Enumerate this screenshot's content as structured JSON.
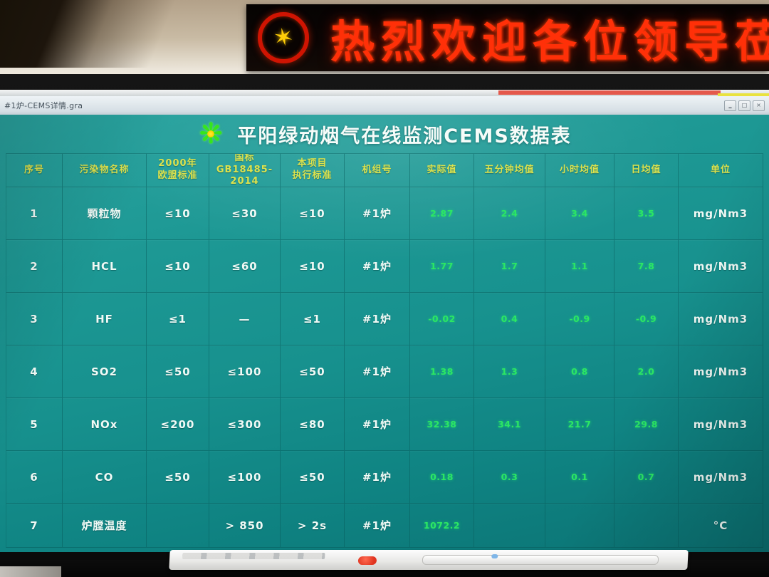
{
  "led_banner": {
    "text": "热烈欢迎各位领导莅",
    "emblem_icon": "red-ring-yellow-star",
    "text_color": "#ff3008",
    "background": "#0a0504"
  },
  "window": {
    "title": "#1炉-CEMS详情.gra",
    "controls": {
      "minimize": "‗",
      "maximize": "□",
      "close": "×"
    }
  },
  "app": {
    "logo_icon": "green-flower-logo",
    "title": "平阳绿动烟气在线监测CEMS数据表"
  },
  "table": {
    "headers": [
      "序号",
      "污染物名称",
      "2000年\n欧盟标准",
      "国标\nGB18485-2014",
      "本项目\n执行标准",
      "机组号",
      "实际值",
      "五分钟均值",
      "小时均值",
      "日均值",
      "单位"
    ],
    "green_columns": [
      6,
      7,
      8,
      9
    ],
    "rows": [
      [
        "1",
        "颗粒物",
        "≤10",
        "≤30",
        "≤10",
        "#1炉",
        "2.87",
        "2.4",
        "3.4",
        "3.5",
        "mg/Nm3"
      ],
      [
        "2",
        "HCL",
        "≤10",
        "≤60",
        "≤10",
        "#1炉",
        "1.77",
        "1.7",
        "1.1",
        "7.8",
        "mg/Nm3"
      ],
      [
        "3",
        "HF",
        "≤1",
        "—",
        "≤1",
        "#1炉",
        "-0.02",
        "0.4",
        "-0.9",
        "-0.9",
        "mg/Nm3"
      ],
      [
        "4",
        "SO2",
        "≤50",
        "≤100",
        "≤50",
        "#1炉",
        "1.38",
        "1.3",
        "0.8",
        "2.0",
        "mg/Nm3"
      ],
      [
        "5",
        "NOx",
        "≤200",
        "≤300",
        "≤80",
        "#1炉",
        "32.38",
        "34.1",
        "21.7",
        "29.8",
        "mg/Nm3"
      ],
      [
        "6",
        "CO",
        "≤50",
        "≤100",
        "≤50",
        "#1炉",
        "0.18",
        "0.3",
        "0.1",
        "0.7",
        "mg/Nm3"
      ],
      [
        "7",
        "炉膛温度",
        "",
        "> 850",
        "> 2s",
        "#1炉",
        "1072.2",
        "",
        "",
        "",
        "°C"
      ]
    ]
  },
  "colors": {
    "screen_teal": "#17918e",
    "header_yellow": "#dde24d",
    "value_green": "#2ce763",
    "led_red": "#ff3008",
    "strip_red": "#e4584b",
    "strip_yellow": "#e9e23e"
  }
}
